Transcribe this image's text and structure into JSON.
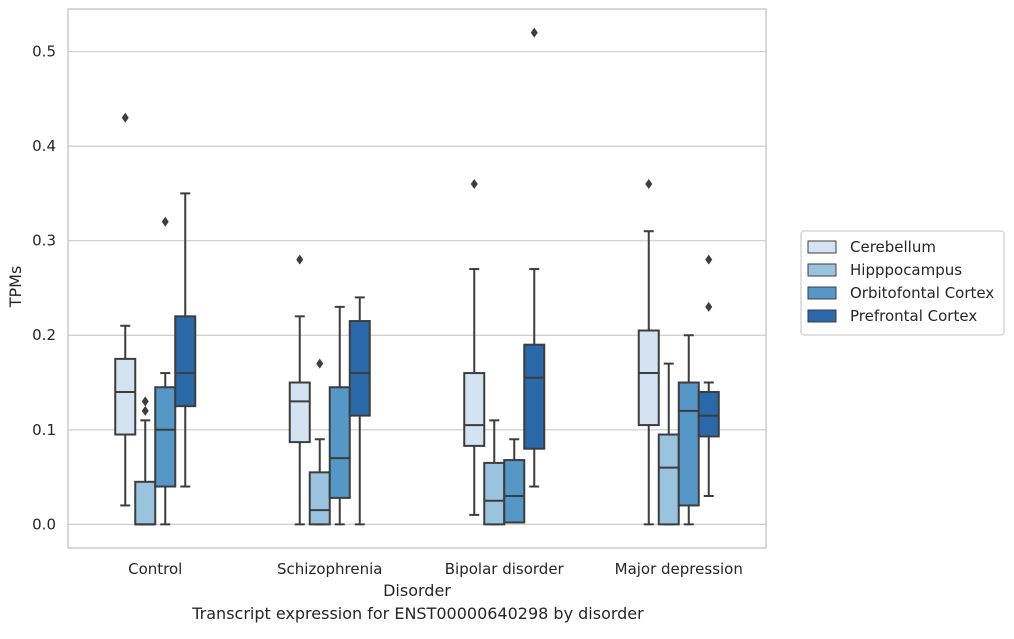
{
  "chart_data": {
    "type": "box",
    "caption": "Transcript expression for ENST00000640298 by disorder",
    "xlabel": "Disorder",
    "ylabel": "TPMs",
    "ylim": [
      -0.025,
      0.545
    ],
    "yticks": [
      0.0,
      0.1,
      0.2,
      0.3,
      0.4,
      0.5
    ],
    "ytick_labels": [
      "0.0",
      "0.1",
      "0.2",
      "0.3",
      "0.4",
      "0.5"
    ],
    "grid": true,
    "legend_position": "right",
    "categories": [
      "Control",
      "Schizophrenia",
      "Bipolar disorder",
      "Major depression"
    ],
    "series": [
      {
        "name": "Cerebellum",
        "color": "#d3e3f2",
        "boxes": [
          {
            "whislo": 0.02,
            "q1": 0.095,
            "med": 0.14,
            "q3": 0.175,
            "whishi": 0.21,
            "fliers": [
              0.43
            ]
          },
          {
            "whislo": 0.0,
            "q1": 0.087,
            "med": 0.13,
            "q3": 0.15,
            "whishi": 0.22,
            "fliers": [
              0.28
            ]
          },
          {
            "whislo": 0.01,
            "q1": 0.083,
            "med": 0.105,
            "q3": 0.16,
            "whishi": 0.27,
            "fliers": [
              0.36
            ]
          },
          {
            "whislo": 0.0,
            "q1": 0.105,
            "med": 0.16,
            "q3": 0.205,
            "whishi": 0.31,
            "fliers": [
              0.36
            ]
          }
        ]
      },
      {
        "name": "Hipppocampus",
        "color": "#9ac3de",
        "boxes": [
          {
            "whislo": 0.0,
            "q1": 0.0,
            "med": 0.0,
            "q3": 0.045,
            "whishi": 0.11,
            "fliers": [
              0.13,
              0.12
            ]
          },
          {
            "whislo": 0.0,
            "q1": 0.0,
            "med": 0.015,
            "q3": 0.055,
            "whishi": 0.09,
            "fliers": [
              0.17
            ]
          },
          {
            "whislo": 0.0,
            "q1": 0.0,
            "med": 0.025,
            "q3": 0.065,
            "whishi": 0.11,
            "fliers": []
          },
          {
            "whislo": 0.0,
            "q1": 0.0,
            "med": 0.06,
            "q3": 0.095,
            "whishi": 0.17,
            "fliers": []
          }
        ]
      },
      {
        "name": "Orbitofontal Cortex",
        "color": "#5597c6",
        "boxes": [
          {
            "whislo": 0.0,
            "q1": 0.04,
            "med": 0.1,
            "q3": 0.145,
            "whishi": 0.16,
            "fliers": [
              0.32
            ]
          },
          {
            "whislo": 0.0,
            "q1": 0.028,
            "med": 0.07,
            "q3": 0.145,
            "whishi": 0.23,
            "fliers": []
          },
          {
            "whislo": 0.002,
            "q1": 0.002,
            "med": 0.03,
            "q3": 0.068,
            "whishi": 0.09,
            "fliers": []
          },
          {
            "whislo": 0.0,
            "q1": 0.02,
            "med": 0.12,
            "q3": 0.15,
            "whishi": 0.2,
            "fliers": []
          }
        ]
      },
      {
        "name": "Prefrontal Cortex",
        "color": "#2a69a9",
        "boxes": [
          {
            "whislo": 0.04,
            "q1": 0.125,
            "med": 0.16,
            "q3": 0.22,
            "whishi": 0.35,
            "fliers": []
          },
          {
            "whislo": 0.0,
            "q1": 0.115,
            "med": 0.16,
            "q3": 0.215,
            "whishi": 0.24,
            "fliers": []
          },
          {
            "whislo": 0.04,
            "q1": 0.08,
            "med": 0.155,
            "q3": 0.19,
            "whishi": 0.27,
            "fliers": [
              0.52
            ]
          },
          {
            "whislo": 0.03,
            "q1": 0.093,
            "med": 0.115,
            "q3": 0.14,
            "whishi": 0.15,
            "fliers": [
              0.28,
              0.23
            ]
          }
        ]
      }
    ]
  }
}
